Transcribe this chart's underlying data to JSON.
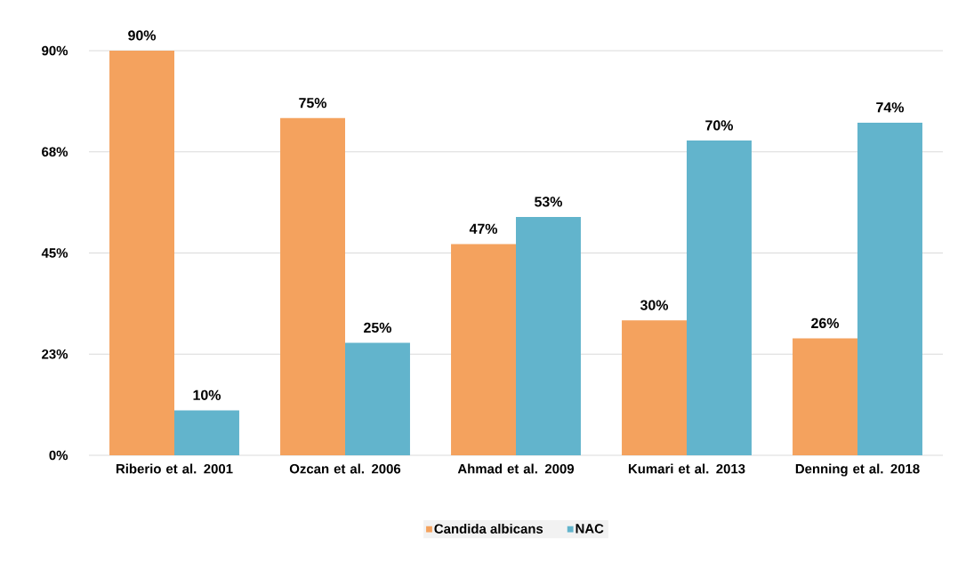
{
  "chart_data": {
    "type": "bar",
    "categories": [
      "Riberio et al. 2001",
      "Ozcan et al. 2006",
      "Ahmad et al. 2009",
      "Kumari et al. 2013",
      "Denning et al. 2018"
    ],
    "series": [
      {
        "name": "Candida albicans",
        "color": "#f4a25e",
        "values": [
          90,
          75,
          47,
          30,
          26
        ],
        "value_labels": [
          "90%",
          "75%",
          "47%",
          "30%",
          "26%"
        ]
      },
      {
        "name": "NAC",
        "color": "#62b4cc",
        "values": [
          10,
          25,
          53,
          70,
          74
        ],
        "value_labels": [
          "10%",
          "25%",
          "53%",
          "70%",
          "74%"
        ]
      }
    ],
    "ylim": [
      0,
      90
    ],
    "yticks": [
      {
        "value": 0,
        "label": "0%"
      },
      {
        "value": 22.5,
        "label": "23%"
      },
      {
        "value": 45,
        "label": "45%"
      },
      {
        "value": 67.5,
        "label": "68%"
      },
      {
        "value": 90,
        "label": "90%"
      }
    ],
    "grid": "y",
    "legend": "bottom"
  }
}
